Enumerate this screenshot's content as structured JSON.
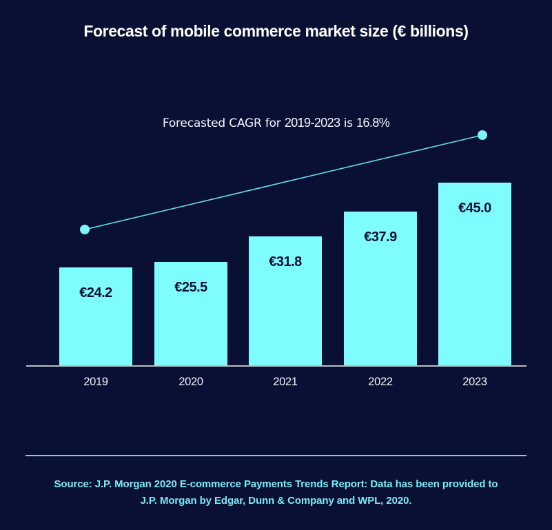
{
  "title": "Forecast of mobile commerce market size (€ billions)",
  "annotation": {
    "prefix": "Forecasted CAGR for ",
    "range": "2019-2023",
    "middle": " is ",
    "value": "16.8%"
  },
  "chart_data": {
    "type": "bar",
    "title": "Forecast of mobile commerce market size (€ billions)",
    "categories": [
      "2019",
      "2020",
      "2021",
      "2022",
      "2023"
    ],
    "values": [
      24.2,
      25.5,
      31.8,
      37.9,
      45.0
    ],
    "bar_labels": [
      "€24.2",
      "€25.5",
      "€31.8",
      "€37.9",
      "€45.0"
    ],
    "annotation": "Forecasted CAGR for 2019-2023 is 16.8%",
    "xlabel": "",
    "ylabel": "",
    "ylim": [
      0,
      45
    ],
    "grid": "off",
    "legend": "none",
    "trendline": {
      "from_category": "2019",
      "to_category": "2023",
      "color": "#69dcee",
      "dot_color": "#7df2fb"
    }
  },
  "source": {
    "line1": "Source: J.P. Morgan 2020 E-commerce Payments Trends Report: Data has been provided to",
    "line2": "J.P. Morgan by Edgar, Dunn & Company and WPL, 2020."
  },
  "colors": {
    "background": "#0a1033",
    "bar": "#7ffdfe",
    "bar_label": "#0a1033",
    "title_text": "#ffffff",
    "annotation_text": "#f4f6fb",
    "axis_line": "#b9bdca",
    "year_label": "#f2f4f8",
    "trend_line": "#69dcee",
    "trend_dot": "#7df2fb",
    "divider": "#74d4e4",
    "source_text": "#7de9f8"
  }
}
